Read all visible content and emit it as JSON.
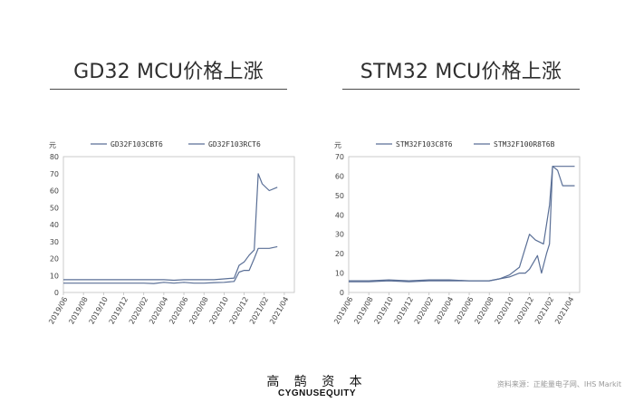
{
  "panels": [
    {
      "title": "GD32 MCU价格上涨"
    },
    {
      "title": "STM32 MCU价格上涨"
    }
  ],
  "footer": {
    "brand_cn": "高 鹄 资 本",
    "brand_en": "CYGNUSEQUITY",
    "source": "资料来源：正能量电子网、IHS Markit"
  },
  "chart_data": [
    {
      "type": "line",
      "title": "GD32 MCU价格上涨",
      "ylabel": "元",
      "ylim": [
        0,
        80
      ],
      "yticks": [
        0,
        10,
        20,
        30,
        40,
        50,
        60,
        70,
        80
      ],
      "xlim": [
        0,
        23
      ],
      "grid": false,
      "legend_position": "top",
      "line_color": "#5a6f96",
      "x_tick_labels": [
        {
          "x": 0,
          "label": "2019/06"
        },
        {
          "x": 2,
          "label": "2019/08"
        },
        {
          "x": 4,
          "label": "2019/10"
        },
        {
          "x": 6,
          "label": "2019/12"
        },
        {
          "x": 8,
          "label": "2020/02"
        },
        {
          "x": 10,
          "label": "2020/04"
        },
        {
          "x": 12,
          "label": "2020/06"
        },
        {
          "x": 14,
          "label": "2020/08"
        },
        {
          "x": 16,
          "label": "2020/10"
        },
        {
          "x": 18,
          "label": "2020/12"
        },
        {
          "x": 20,
          "label": "2021/02"
        },
        {
          "x": 22,
          "label": "2021/04"
        }
      ],
      "series": [
        {
          "name": "GD32F103CBT6",
          "points": [
            [
              0,
              7.5
            ],
            [
              2,
              7.5
            ],
            [
              4,
              7.5
            ],
            [
              6,
              7.5
            ],
            [
              8,
              7.5
            ],
            [
              10,
              7.5
            ],
            [
              11,
              7.2
            ],
            [
              12,
              7.5
            ],
            [
              14,
              7.5
            ],
            [
              15,
              7.5
            ],
            [
              16,
              8
            ],
            [
              17,
              8.5
            ],
            [
              17.5,
              16
            ],
            [
              18,
              18
            ],
            [
              18.5,
              22
            ],
            [
              19,
              25
            ],
            [
              19.4,
              70
            ],
            [
              19.8,
              64
            ],
            [
              20.5,
              60
            ],
            [
              21.3,
              62
            ]
          ]
        },
        {
          "name": "GD32F103RCT6",
          "points": [
            [
              0,
              5.5
            ],
            [
              2,
              5.5
            ],
            [
              4,
              5.5
            ],
            [
              6,
              5.5
            ],
            [
              8,
              5.5
            ],
            [
              9,
              5.3
            ],
            [
              10,
              6
            ],
            [
              11,
              5.5
            ],
            [
              12,
              6
            ],
            [
              13,
              5.5
            ],
            [
              14,
              5.5
            ],
            [
              15,
              5.8
            ],
            [
              16,
              6
            ],
            [
              17,
              6.5
            ],
            [
              17.5,
              12
            ],
            [
              18,
              13
            ],
            [
              18.5,
              13
            ],
            [
              19,
              20
            ],
            [
              19.4,
              26
            ],
            [
              20,
              26
            ],
            [
              20.5,
              26
            ],
            [
              21.3,
              27
            ]
          ]
        }
      ]
    },
    {
      "type": "line",
      "title": "STM32 MCU价格上涨",
      "ylabel": "元",
      "ylim": [
        0,
        70
      ],
      "yticks": [
        0,
        10,
        20,
        30,
        40,
        50,
        60,
        70
      ],
      "xlim": [
        0,
        23
      ],
      "grid": false,
      "legend_position": "top",
      "line_color": "#5a6f96",
      "x_tick_labels": [
        {
          "x": 0,
          "label": "2019/06"
        },
        {
          "x": 2,
          "label": "2019/08"
        },
        {
          "x": 4,
          "label": "2019/10"
        },
        {
          "x": 6,
          "label": "2019/12"
        },
        {
          "x": 8,
          "label": "2020/02"
        },
        {
          "x": 10,
          "label": "2020/04"
        },
        {
          "x": 12,
          "label": "2020/06"
        },
        {
          "x": 14,
          "label": "2020/08"
        },
        {
          "x": 16,
          "label": "2020/10"
        },
        {
          "x": 18,
          "label": "2020/12"
        },
        {
          "x": 20,
          "label": "2021/02"
        },
        {
          "x": 22,
          "label": "2021/04"
        }
      ],
      "series": [
        {
          "name": "STM32F103C8T6",
          "points": [
            [
              0,
              6
            ],
            [
              2,
              6
            ],
            [
              4,
              6.5
            ],
            [
              6,
              6
            ],
            [
              8,
              6.5
            ],
            [
              10,
              6.5
            ],
            [
              12,
              6
            ],
            [
              14,
              6
            ],
            [
              15,
              7
            ],
            [
              16,
              8
            ],
            [
              17,
              10
            ],
            [
              17.6,
              10
            ],
            [
              18,
              12
            ],
            [
              18.8,
              19
            ],
            [
              19.2,
              10
            ],
            [
              19.7,
              20
            ],
            [
              20,
              25
            ],
            [
              20.3,
              65
            ],
            [
              20.8,
              63
            ],
            [
              21.3,
              55
            ],
            [
              22.5,
              55
            ]
          ]
        },
        {
          "name": "STM32F100R8T6B",
          "points": [
            [
              0,
              5.5
            ],
            [
              2,
              5.5
            ],
            [
              4,
              6
            ],
            [
              6,
              5.5
            ],
            [
              8,
              6
            ],
            [
              10,
              6
            ],
            [
              12,
              6
            ],
            [
              14,
              6
            ],
            [
              15,
              7
            ],
            [
              16,
              9
            ],
            [
              17,
              13
            ],
            [
              18,
              30
            ],
            [
              18.6,
              27
            ],
            [
              19.4,
              25
            ],
            [
              20,
              45
            ],
            [
              20.3,
              65
            ],
            [
              22.5,
              65
            ]
          ]
        }
      ]
    }
  ]
}
